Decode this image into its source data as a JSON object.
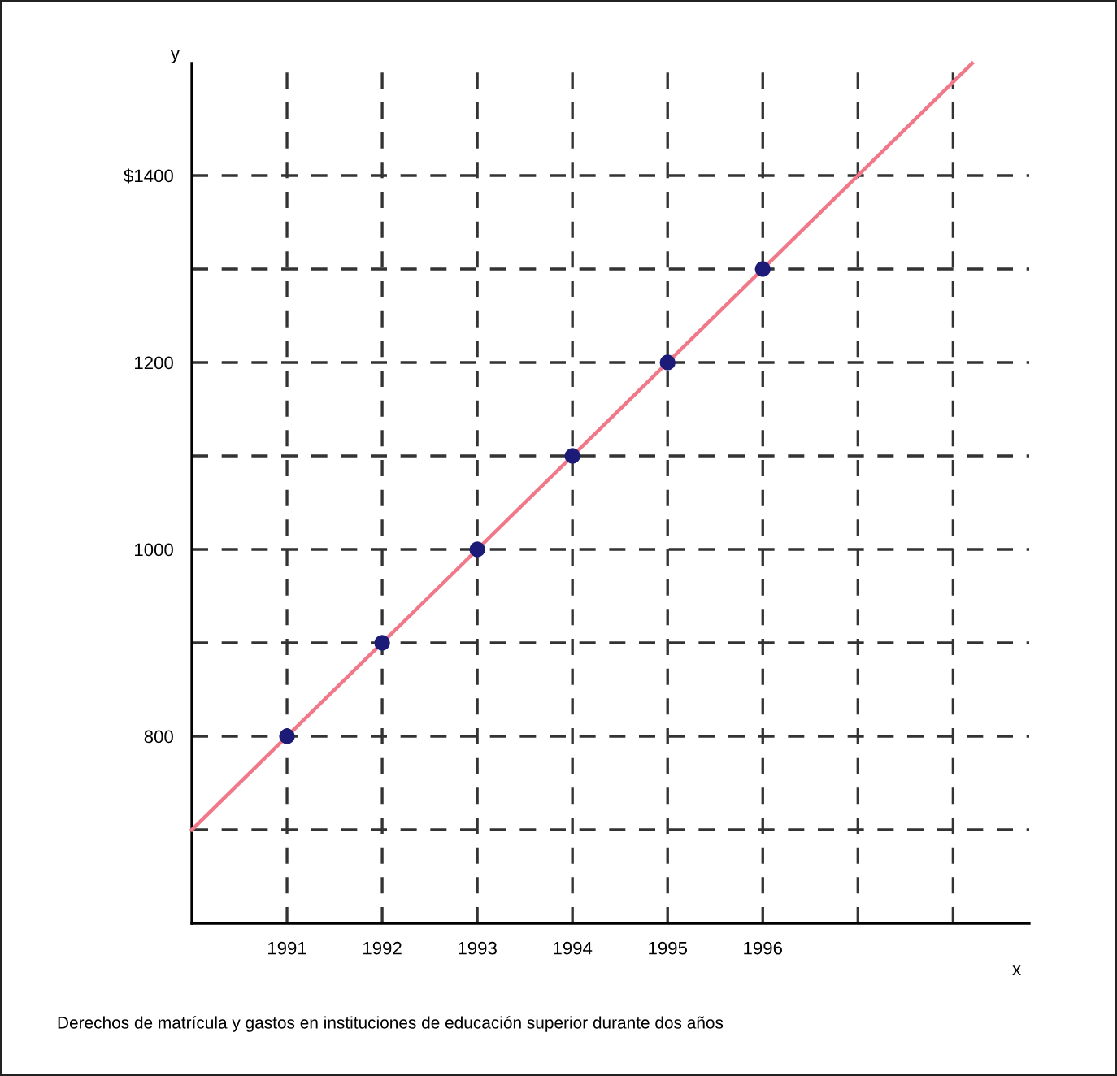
{
  "chart_data": {
    "type": "scatter",
    "xlabel": "x",
    "ylabel": "y",
    "series": [
      {
        "type": "line",
        "marker": "none",
        "color": "#f07888",
        "x": [
          1990,
          1998.2
        ],
        "values": [
          700,
          1520
        ]
      },
      {
        "marker": "circle",
        "color": "#1c1c78",
        "x": [
          1991,
          1992,
          1993,
          1994,
          1995,
          1996
        ],
        "values": [
          800,
          900,
          1000,
          1100,
          1200,
          1300
        ]
      }
    ],
    "xlim": [
      1990,
      1998.8
    ],
    "ylim": [
      600,
      1520
    ],
    "xticks": [
      1991,
      1992,
      1993,
      1994,
      1995,
      1996,
      {
        "value": 1997,
        "label": null
      },
      {
        "value": 1998,
        "label": null
      }
    ],
    "yticks": [
      {
        "value": 700,
        "label": null
      },
      800,
      {
        "value": 900,
        "label": null
      },
      1000,
      {
        "value": 1100,
        "label": null
      },
      1200,
      {
        "value": 1300,
        "label": null
      },
      {
        "value": 1400,
        "label": "$1400"
      }
    ],
    "grid": true,
    "annotations": [
      "Derechos de matrícula y gastos en instituciones de educación superior durante dos años"
    ]
  }
}
